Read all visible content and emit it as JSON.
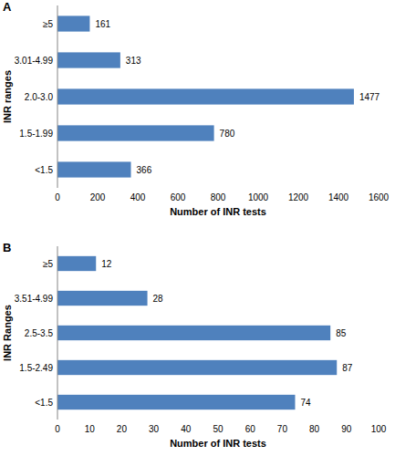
{
  "chart_data": [
    {
      "type": "bar",
      "title": "A",
      "orientation": "horizontal",
      "categories": [
        "<1.5",
        "1.5-1.99",
        "2.0-3.0",
        "3.01-4.99",
        "≥5"
      ],
      "values": [
        366,
        780,
        1477,
        313,
        161
      ],
      "color": "#4f81bd",
      "x_label": "Number of INR tests",
      "y_label": "INR ranges",
      "xlim": [
        0,
        1600
      ],
      "xticks": [
        0,
        200,
        400,
        600,
        800,
        1000,
        1200,
        1400,
        1600
      ],
      "grid": false,
      "data_labels": true
    },
    {
      "type": "bar",
      "title": "B",
      "orientation": "horizontal",
      "categories": [
        "<1.5",
        "1.5-2.49",
        "2.5-3.5",
        "3.51-4.99",
        "≥5"
      ],
      "values": [
        74,
        87,
        85,
        28,
        12
      ],
      "color": "#4f81bd",
      "x_label": "Number of INR tests",
      "y_label": "INR Ranges",
      "xlim": [
        0,
        100
      ],
      "xticks": [
        0,
        10,
        20,
        30,
        40,
        50,
        60,
        70,
        80,
        90,
        100
      ],
      "grid": false,
      "data_labels": true
    }
  ]
}
